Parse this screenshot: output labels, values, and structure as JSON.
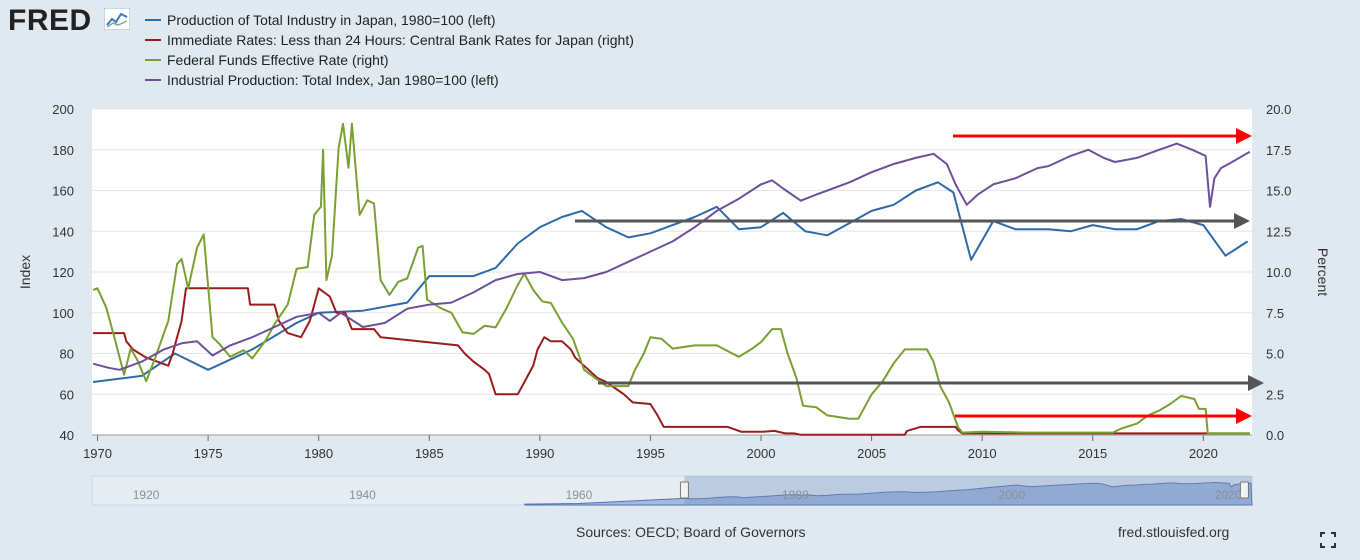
{
  "header": {
    "logo_text": "FRED",
    "logo_icon": "fred-graph-icon"
  },
  "footer": {
    "sources": "Sources: OECD; Board of Governors",
    "site": "fred.stlouisfed.org",
    "fullscreen_icon": "fullscreen-icon"
  },
  "colors": {
    "background": "#e1e9f0",
    "plot_background": "#ffffff",
    "arrow_red": "#ff0000",
    "arrow_gray": "#555555",
    "navigator_fill": "#6f8fc4"
  },
  "chart_data": {
    "type": "line",
    "x_range": [
      1969.75,
      2022.2
    ],
    "y_left": {
      "label": "Index",
      "range": [
        40,
        200
      ],
      "ticks": [
        40,
        60,
        80,
        100,
        120,
        140,
        160,
        180,
        200
      ]
    },
    "y_right": {
      "label": "Percent",
      "range": [
        0,
        20
      ],
      "ticks": [
        "0.0",
        "2.5",
        "5.0",
        "7.5",
        "10.0",
        "12.5",
        "15.0",
        "17.5",
        "20.0"
      ]
    },
    "x_ticks": [
      1970,
      1975,
      1980,
      1985,
      1990,
      1995,
      2000,
      2005,
      2010,
      2015,
      2020
    ],
    "grid": true,
    "legend_placement": "top-left",
    "series": [
      {
        "name": "Production of Total Industry in Japan, 1980=100 (left)",
        "axis": "left",
        "color": "#2f69a6",
        "points": [
          [
            1969.8,
            66
          ],
          [
            1972,
            69
          ],
          [
            1973.5,
            80
          ],
          [
            1975,
            72
          ],
          [
            1977,
            82
          ],
          [
            1979,
            95
          ],
          [
            1980,
            100
          ],
          [
            1982,
            101
          ],
          [
            1984,
            105
          ],
          [
            1985,
            118
          ],
          [
            1987,
            118
          ],
          [
            1988,
            122
          ],
          [
            1989,
            134
          ],
          [
            1990,
            142
          ],
          [
            1991,
            147
          ],
          [
            1991.9,
            150
          ],
          [
            1993,
            142
          ],
          [
            1994,
            137
          ],
          [
            1995,
            139
          ],
          [
            1996,
            143
          ],
          [
            1997,
            147
          ],
          [
            1998,
            152
          ],
          [
            1999,
            141
          ],
          [
            2000,
            142
          ],
          [
            2001,
            149
          ],
          [
            2002,
            140
          ],
          [
            2003,
            138
          ],
          [
            2004,
            144
          ],
          [
            2005,
            150
          ],
          [
            2006,
            153
          ],
          [
            2007,
            160
          ],
          [
            2008,
            164
          ],
          [
            2008.7,
            159
          ],
          [
            2009.5,
            126
          ],
          [
            2010.5,
            145
          ],
          [
            2011.5,
            141
          ],
          [
            2013,
            141
          ],
          [
            2014,
            140
          ],
          [
            2015,
            143
          ],
          [
            2016,
            141
          ],
          [
            2017,
            141
          ],
          [
            2018,
            145
          ],
          [
            2019,
            146
          ],
          [
            2020,
            143
          ],
          [
            2021,
            128
          ],
          [
            2022,
            135
          ]
        ]
      },
      {
        "name": "Immediate Rates: Less than 24 Hours: Central Bank Rates for Japan (right)",
        "axis": "right",
        "color": "#9b1c1c",
        "points": [
          [
            1969.8,
            6.25
          ],
          [
            1971.2,
            6.25
          ],
          [
            1971.3,
            5.75
          ],
          [
            1971.6,
            5.25
          ],
          [
            1972.2,
            4.75
          ],
          [
            1973.2,
            4.25
          ],
          [
            1973.4,
            5
          ],
          [
            1973.6,
            6
          ],
          [
            1973.8,
            7
          ],
          [
            1974,
            9
          ],
          [
            1976.8,
            9
          ],
          [
            1976.9,
            8
          ],
          [
            1978,
            8
          ],
          [
            1978.2,
            7
          ],
          [
            1978.6,
            6.25
          ],
          [
            1979.2,
            6
          ],
          [
            1979.4,
            6.5
          ],
          [
            1979.6,
            7
          ],
          [
            1979.8,
            8
          ],
          [
            1980,
            9
          ],
          [
            1980.5,
            8.5
          ],
          [
            1980.8,
            7.5
          ],
          [
            1981.2,
            7.5
          ],
          [
            1981.5,
            6.5
          ],
          [
            1982.5,
            6.5
          ],
          [
            1982.8,
            6
          ],
          [
            1986.3,
            5.5
          ],
          [
            1986.6,
            5
          ],
          [
            1987,
            4.5
          ],
          [
            1987.5,
            4
          ],
          [
            1987.7,
            3.75
          ],
          [
            1988,
            2.5
          ],
          [
            1989,
            2.5
          ],
          [
            1989.2,
            3
          ],
          [
            1989.5,
            3.75
          ],
          [
            1989.7,
            4.25
          ],
          [
            1989.9,
            5.25
          ],
          [
            1990.2,
            6
          ],
          [
            1990.5,
            5.75
          ],
          [
            1991,
            5.75
          ],
          [
            1991.4,
            5.25
          ],
          [
            1991.6,
            4.75
          ],
          [
            1992.2,
            4
          ],
          [
            1992.6,
            3.5
          ],
          [
            1993,
            3.25
          ],
          [
            1993.8,
            2.5
          ],
          [
            1994.2,
            2
          ],
          [
            1995,
            1.9
          ],
          [
            1995.3,
            1.25
          ],
          [
            1995.6,
            0.5
          ],
          [
            1998.5,
            0.5
          ],
          [
            1999.1,
            0.2
          ],
          [
            2000.1,
            0.2
          ],
          [
            2000.6,
            0.25
          ],
          [
            2001.1,
            0.1
          ],
          [
            2001.5,
            0.1
          ],
          [
            2001.8,
            0.01
          ],
          [
            2006.5,
            0.01
          ],
          [
            2006.6,
            0.25
          ],
          [
            2007.2,
            0.5
          ],
          [
            2008.8,
            0.5
          ],
          [
            2008.9,
            0.3
          ],
          [
            2009.1,
            0.1
          ],
          [
            2016.1,
            0.1
          ],
          [
            2022.1,
            0.1
          ]
        ]
      },
      {
        "name": "Federal Funds Effective Rate (right)",
        "axis": "right",
        "color": "#78a032",
        "points": [
          [
            1969.8,
            8.9
          ],
          [
            1970,
            9
          ],
          [
            1970.4,
            7.8
          ],
          [
            1970.8,
            5.8
          ],
          [
            1971.2,
            3.7
          ],
          [
            1971.5,
            5.3
          ],
          [
            1971.8,
            4.6
          ],
          [
            1972.2,
            3.3
          ],
          [
            1972.6,
            4.7
          ],
          [
            1973.2,
            7
          ],
          [
            1973.6,
            10.5
          ],
          [
            1973.8,
            10.8
          ],
          [
            1974.1,
            9
          ],
          [
            1974.5,
            11.5
          ],
          [
            1974.8,
            12.3
          ],
          [
            1975.2,
            6
          ],
          [
            1975.5,
            5.6
          ],
          [
            1976,
            4.8
          ],
          [
            1976.6,
            5.2
          ],
          [
            1977,
            4.7
          ],
          [
            1977.6,
            5.8
          ],
          [
            1978,
            6.8
          ],
          [
            1978.6,
            8
          ],
          [
            1979,
            10.2
          ],
          [
            1979.5,
            10.3
          ],
          [
            1979.8,
            13.5
          ],
          [
            1980.1,
            14
          ],
          [
            1980.2,
            17.5
          ],
          [
            1980.35,
            9.5
          ],
          [
            1980.6,
            11
          ],
          [
            1980.9,
            17.6
          ],
          [
            1981.1,
            19.1
          ],
          [
            1981.35,
            16.4
          ],
          [
            1981.5,
            19.1
          ],
          [
            1981.85,
            13.5
          ],
          [
            1982.2,
            14.4
          ],
          [
            1982.5,
            14.2
          ],
          [
            1982.8,
            9.5
          ],
          [
            1983.2,
            8.6
          ],
          [
            1983.6,
            9.4
          ],
          [
            1984,
            9.6
          ],
          [
            1984.5,
            11.5
          ],
          [
            1984.7,
            11.6
          ],
          [
            1984.9,
            8.3
          ],
          [
            1985.5,
            7.8
          ],
          [
            1986,
            7.5
          ],
          [
            1986.5,
            6.3
          ],
          [
            1987,
            6.2
          ],
          [
            1987.5,
            6.7
          ],
          [
            1988,
            6.6
          ],
          [
            1988.5,
            7.8
          ],
          [
            1989,
            9.2
          ],
          [
            1989.3,
            9.9
          ],
          [
            1989.7,
            8.9
          ],
          [
            1990.1,
            8.2
          ],
          [
            1990.5,
            8.1
          ],
          [
            1991,
            6.9
          ],
          [
            1991.5,
            5.9
          ],
          [
            1992,
            4
          ],
          [
            1992.5,
            3.5
          ],
          [
            1993,
            3
          ],
          [
            1994,
            3
          ],
          [
            1994.3,
            4
          ],
          [
            1994.7,
            5
          ],
          [
            1995,
            6
          ],
          [
            1995.5,
            5.9
          ],
          [
            1996,
            5.3
          ],
          [
            1997,
            5.5
          ],
          [
            1998,
            5.5
          ],
          [
            1998.7,
            5
          ],
          [
            1999,
            4.8
          ],
          [
            1999.6,
            5.3
          ],
          [
            2000,
            5.7
          ],
          [
            2000.5,
            6.5
          ],
          [
            2000.9,
            6.5
          ],
          [
            2001.2,
            5
          ],
          [
            2001.6,
            3.5
          ],
          [
            2001.9,
            1.8
          ],
          [
            2002.5,
            1.7
          ],
          [
            2003,
            1.2
          ],
          [
            2004,
            1
          ],
          [
            2004.4,
            1
          ],
          [
            2005,
            2.5
          ],
          [
            2005.5,
            3.3
          ],
          [
            2006,
            4.4
          ],
          [
            2006.5,
            5.25
          ],
          [
            2007.5,
            5.25
          ],
          [
            2007.8,
            4.5
          ],
          [
            2008.1,
            3
          ],
          [
            2008.5,
            2
          ],
          [
            2008.9,
            0.5
          ],
          [
            2009.1,
            0.15
          ],
          [
            2010,
            0.2
          ],
          [
            2012,
            0.15
          ],
          [
            2015.9,
            0.15
          ],
          [
            2016.3,
            0.4
          ],
          [
            2017,
            0.7
          ],
          [
            2017.5,
            1.2
          ],
          [
            2018,
            1.5
          ],
          [
            2018.5,
            1.9
          ],
          [
            2019,
            2.4
          ],
          [
            2019.6,
            2.2
          ],
          [
            2019.8,
            1.6
          ],
          [
            2020.1,
            1.6
          ],
          [
            2020.2,
            0.1
          ],
          [
            2022.1,
            0.1
          ]
        ]
      },
      {
        "name": "Industrial Production: Total Index, Jan 1980=100 (left)",
        "axis": "left",
        "color": "#6e4f9b",
        "points": [
          [
            1969.8,
            75
          ],
          [
            1970.5,
            73
          ],
          [
            1971,
            72
          ],
          [
            1972,
            76
          ],
          [
            1973,
            82
          ],
          [
            1973.8,
            85
          ],
          [
            1974.5,
            86
          ],
          [
            1975.2,
            79
          ],
          [
            1976,
            84
          ],
          [
            1977,
            88
          ],
          [
            1978,
            93
          ],
          [
            1979,
            98
          ],
          [
            1980,
            100
          ],
          [
            1980.5,
            96
          ],
          [
            1981,
            100
          ],
          [
            1982,
            93
          ],
          [
            1983,
            95
          ],
          [
            1984,
            102
          ],
          [
            1985,
            104
          ],
          [
            1986,
            105
          ],
          [
            1987,
            110
          ],
          [
            1988,
            116
          ],
          [
            1989,
            119
          ],
          [
            1990,
            120
          ],
          [
            1991,
            116
          ],
          [
            1992,
            117
          ],
          [
            1993,
            120
          ],
          [
            1994,
            125
          ],
          [
            1995,
            130
          ],
          [
            1996,
            135
          ],
          [
            1997,
            142
          ],
          [
            1998,
            150
          ],
          [
            1999,
            156
          ],
          [
            2000,
            163
          ],
          [
            2000.5,
            165
          ],
          [
            2001,
            161
          ],
          [
            2001.8,
            155
          ],
          [
            2002.5,
            158
          ],
          [
            2003,
            160
          ],
          [
            2004,
            164
          ],
          [
            2005,
            169
          ],
          [
            2006,
            173
          ],
          [
            2007,
            176
          ],
          [
            2007.8,
            178
          ],
          [
            2008.4,
            173
          ],
          [
            2008.8,
            163
          ],
          [
            2009.3,
            153
          ],
          [
            2009.8,
            158
          ],
          [
            2010.5,
            163
          ],
          [
            2011.5,
            166
          ],
          [
            2012.5,
            171
          ],
          [
            2013,
            172
          ],
          [
            2014,
            177
          ],
          [
            2014.8,
            180
          ],
          [
            2015.5,
            176
          ],
          [
            2016,
            174
          ],
          [
            2017,
            176
          ],
          [
            2018,
            180
          ],
          [
            2018.8,
            183
          ],
          [
            2019.5,
            180
          ],
          [
            2020.1,
            177
          ],
          [
            2020.3,
            152
          ],
          [
            2020.5,
            166
          ],
          [
            2020.8,
            171
          ],
          [
            2021.3,
            174
          ],
          [
            2022.1,
            179
          ]
        ]
      }
    ],
    "navigator_ticks": [
      "1920",
      "1940",
      "1960",
      "1980",
      "2000",
      "2020"
    ]
  }
}
